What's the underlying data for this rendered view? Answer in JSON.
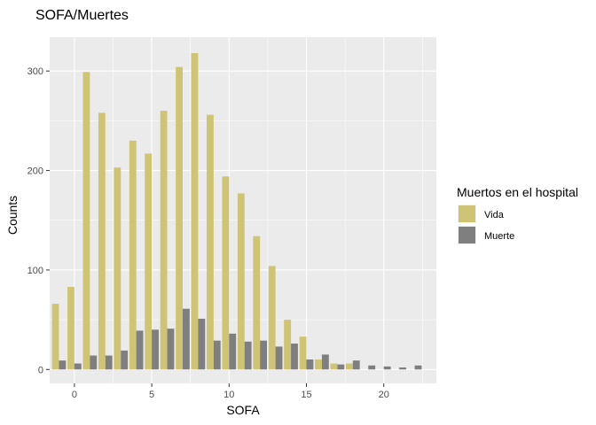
{
  "chart_data": {
    "type": "bar",
    "title": "SOFA/Muertes",
    "xlabel": "SOFA",
    "ylabel": "Counts",
    "xlim": [
      -1.6,
      23.4
    ],
    "ylim": [
      -14,
      334
    ],
    "xticks": [
      0,
      5,
      10,
      15,
      20
    ],
    "yticks": [
      0,
      100,
      200,
      300
    ],
    "grid": true,
    "legend": {
      "title": "Muertos en el hospital",
      "position": "right"
    },
    "x": [
      -1,
      0,
      1,
      2,
      3,
      4,
      5,
      6,
      7,
      8,
      9,
      10,
      11,
      12,
      13,
      14,
      15,
      16,
      17,
      18,
      19,
      20,
      21,
      22
    ],
    "series": [
      {
        "name": "Vida",
        "color": "#cfc475",
        "values": [
          66,
          83,
          299,
          258,
          203,
          230,
          217,
          260,
          304,
          318,
          256,
          194,
          177,
          134,
          104,
          50,
          33,
          10,
          6,
          6,
          null,
          null,
          null,
          null
        ]
      },
      {
        "name": "Muerte",
        "color": "#7f7f7f",
        "values": [
          9,
          6,
          14,
          14,
          19,
          39,
          40,
          41,
          61,
          51,
          29,
          36,
          28,
          29,
          23,
          26,
          10,
          15,
          5,
          9,
          4,
          3,
          2,
          4
        ]
      }
    ]
  }
}
